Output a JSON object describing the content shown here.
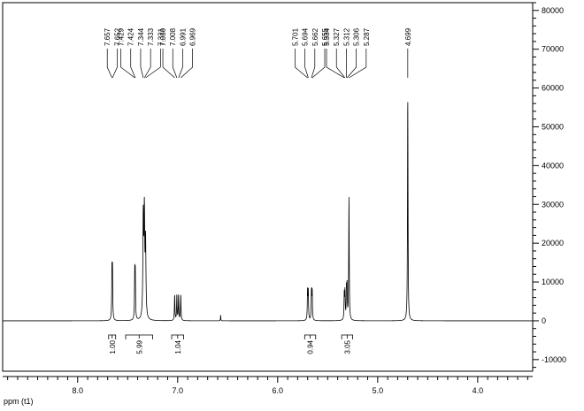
{
  "chart_data": {
    "type": "line",
    "xlabel": "ppm (t1)",
    "ylabel": "",
    "title": "",
    "xlim": [
      8.75,
      3.45
    ],
    "ylim": [
      -13000,
      82000
    ],
    "x_ticks": [
      {
        "value": 8.0,
        "label": "8.0"
      },
      {
        "value": 7.0,
        "label": "7.0"
      },
      {
        "value": 6.0,
        "label": "6.0"
      },
      {
        "value": 5.0,
        "label": "5.0"
      },
      {
        "value": 4.0,
        "label": "4.0"
      }
    ],
    "y_ticks": [
      {
        "value": 80000,
        "label": "80000"
      },
      {
        "value": 70000,
        "label": "70000"
      },
      {
        "value": 60000,
        "label": "60000"
      },
      {
        "value": 50000,
        "label": "50000"
      },
      {
        "value": 40000,
        "label": "40000"
      },
      {
        "value": 30000,
        "label": "30000"
      },
      {
        "value": 20000,
        "label": "20000"
      },
      {
        "value": 10000,
        "label": "10000"
      },
      {
        "value": 0,
        "label": "0"
      },
      {
        "value": -10000,
        "label": "-10000"
      }
    ],
    "peaks": [
      {
        "ppm": 7.657,
        "height": 12000,
        "width": 0.006
      },
      {
        "ppm": 7.652,
        "height": 12000,
        "width": 0.006
      },
      {
        "ppm": 7.429,
        "height": 11500,
        "width": 0.006
      },
      {
        "ppm": 7.424,
        "height": 11000,
        "width": 0.006
      },
      {
        "ppm": 7.344,
        "height": 25500,
        "width": 0.009
      },
      {
        "ppm": 7.333,
        "height": 26000,
        "width": 0.009
      },
      {
        "ppm": 7.321,
        "height": 19000,
        "width": 0.009
      },
      {
        "ppm": 7.03,
        "height": 6500,
        "width": 0.006
      },
      {
        "ppm": 7.008,
        "height": 6500,
        "width": 0.006
      },
      {
        "ppm": 6.991,
        "height": 6500,
        "width": 0.006
      },
      {
        "ppm": 6.969,
        "height": 6500,
        "width": 0.006
      },
      {
        "ppm": 6.57,
        "height": 1500,
        "width": 0.004
      },
      {
        "ppm": 5.701,
        "height": 7500,
        "width": 0.006
      },
      {
        "ppm": 5.694,
        "height": 7200,
        "width": 0.006
      },
      {
        "ppm": 5.662,
        "height": 7500,
        "width": 0.006
      },
      {
        "ppm": 5.655,
        "height": 7200,
        "width": 0.006
      },
      {
        "ppm": 5.334,
        "height": 6500,
        "width": 0.006
      },
      {
        "ppm": 5.327,
        "height": 7000,
        "width": 0.006
      },
      {
        "ppm": 5.312,
        "height": 7500,
        "width": 0.006
      },
      {
        "ppm": 5.306,
        "height": 8000,
        "width": 0.006
      },
      {
        "ppm": 5.287,
        "height": 31500,
        "width": 0.006
      },
      {
        "ppm": 4.699,
        "height": 57000,
        "width": 0.006
      }
    ],
    "peak_labels": [
      {
        "label": "7.657",
        "ppm": 7.657
      },
      {
        "label": "7.652",
        "ppm": 7.652
      },
      {
        "label": "7.429",
        "ppm": 7.429
      },
      {
        "label": "7.424",
        "ppm": 7.424
      },
      {
        "label": "7.344",
        "ppm": 7.344
      },
      {
        "label": "7.333",
        "ppm": 7.333
      },
      {
        "label": "7.321",
        "ppm": 7.321
      },
      {
        "label": "7.030",
        "ppm": 7.03
      },
      {
        "label": "7.008",
        "ppm": 7.008
      },
      {
        "label": "6.991",
        "ppm": 6.991
      },
      {
        "label": "6.969",
        "ppm": 6.969
      },
      {
        "label": "5.701",
        "ppm": 5.701
      },
      {
        "label": "5.694",
        "ppm": 5.694
      },
      {
        "label": "5.662",
        "ppm": 5.662
      },
      {
        "label": "5.655",
        "ppm": 5.655
      },
      {
        "label": "5.334",
        "ppm": 5.334
      },
      {
        "label": "5.327",
        "ppm": 5.327
      },
      {
        "label": "5.312",
        "ppm": 5.312
      },
      {
        "label": "5.306",
        "ppm": 5.306
      },
      {
        "label": "5.287",
        "ppm": 5.287
      },
      {
        "label": "4.699",
        "ppm": 4.699
      }
    ],
    "integrals": [
      {
        "from": 7.69,
        "to": 7.62,
        "value": "1.00"
      },
      {
        "from": 7.52,
        "to": 7.25,
        "value": "5.99"
      },
      {
        "from": 7.06,
        "to": 6.94,
        "value": "1.04"
      },
      {
        "from": 5.73,
        "to": 5.62,
        "value": "0.94"
      },
      {
        "from": 5.36,
        "to": 5.25,
        "value": "3.05"
      }
    ],
    "grid": false,
    "legend": "none"
  }
}
